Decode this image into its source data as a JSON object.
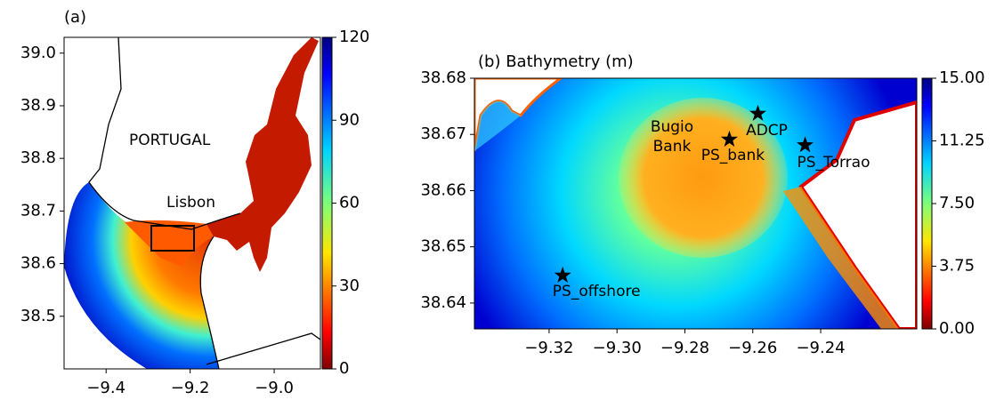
{
  "chart_data": [
    {
      "type": "map",
      "title": "(a)",
      "xlim": [
        -9.5,
        -8.89
      ],
      "ylim": [
        38.4,
        39.03
      ],
      "xticks": [
        {
          "value": -9.4,
          "label": "−9.4"
        },
        {
          "value": -9.2,
          "label": "−9.2"
        },
        {
          "value": -9.0,
          "label": "−9.0"
        }
      ],
      "yticks": [
        38.5,
        38.6,
        38.7,
        38.8,
        38.9,
        {
          "value": 39.0,
          "label": "39.0"
        }
      ],
      "colorbar": {
        "lim": [
          0,
          120
        ],
        "ticks": [
          0,
          30,
          60,
          90,
          120
        ]
      },
      "annotations": [
        "PORTUGAL",
        "Lisbon"
      ]
    },
    {
      "type": "map",
      "title": "(b) Bathymetry (m)",
      "xlim": [
        -9.342,
        -9.2117
      ],
      "ylim": [
        38.6354,
        38.68
      ],
      "xticks": [
        {
          "value": -9.32,
          "label": "−9.32"
        },
        {
          "value": -9.3,
          "label": "−9.30"
        },
        {
          "value": -9.28,
          "label": "−9.28"
        },
        {
          "value": -9.26,
          "label": "−9.26"
        },
        {
          "value": -9.24,
          "label": "−9.24"
        }
      ],
      "yticks": [
        38.64,
        38.65,
        38.66,
        38.67,
        38.68
      ],
      "colorbar": {
        "lim": [
          0,
          15
        ],
        "ticks": [
          {
            "value": 0,
            "label": "0.00"
          },
          3.75,
          {
            "value": 7.5,
            "label": "7.50"
          },
          11.25,
          {
            "value": 15,
            "label": "15.00"
          }
        ]
      },
      "annotations": [
        "Bugio",
        "Bank"
      ],
      "stations": [
        {
          "name": "ADCP",
          "x": -9.2585,
          "y": 38.6737
        },
        {
          "name": "PS_bank",
          "x": -9.2669,
          "y": 38.6691
        },
        {
          "name": "PS_Torrao",
          "x": -9.2446,
          "y": 38.6681
        },
        {
          "name": "PS_offshore",
          "x": -9.316,
          "y": 38.6449
        }
      ]
    }
  ]
}
